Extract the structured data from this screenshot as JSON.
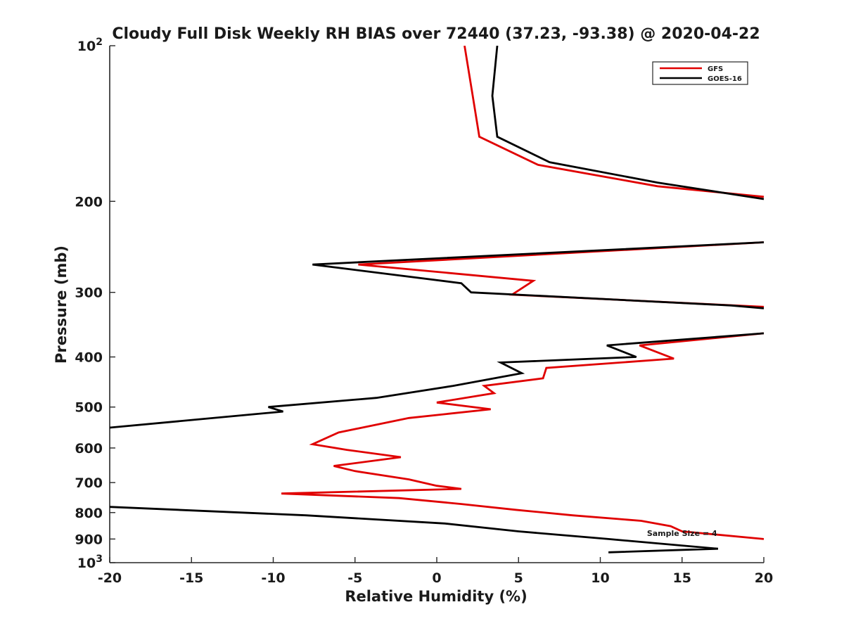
{
  "chart_data": {
    "type": "line",
    "title": "Cloudy Full Disk Weekly RH BIAS over 72440 (37.23, -93.38) @ 2020-04-22",
    "xlabel": "Relative Humidity (%)",
    "ylabel": "Pressure (mb)",
    "xlim": [
      -20,
      20
    ],
    "ylim": [
      100,
      1000
    ],
    "yscale": "log",
    "y_reversed": true,
    "grid": false,
    "legend_position": "top-right",
    "x_ticks": [
      -20,
      -15,
      -10,
      -5,
      0,
      5,
      10,
      15,
      20
    ],
    "x_tick_labels": [
      "-20",
      "-15",
      "-10",
      "-5",
      "0",
      "5",
      "10",
      "15",
      "20"
    ],
    "y_ticks": [
      100,
      200,
      300,
      400,
      500,
      600,
      700,
      800,
      900,
      1000
    ],
    "y_tick_labels": [
      {
        "base": "10",
        "exp": "2"
      },
      {
        "base": "200",
        "exp": ""
      },
      {
        "base": "300",
        "exp": ""
      },
      {
        "base": "400",
        "exp": ""
      },
      {
        "base": "500",
        "exp": ""
      },
      {
        "base": "600",
        "exp": ""
      },
      {
        "base": "700",
        "exp": ""
      },
      {
        "base": "800",
        "exp": ""
      },
      {
        "base": "900",
        "exp": ""
      },
      {
        "base": "10",
        "exp": "3"
      }
    ],
    "annotation": {
      "text": "Sample Size = 4",
      "x": 15,
      "p": 910
    },
    "series": [
      {
        "name": "GFS",
        "color": "#e00000",
        "points": [
          [
            1.7,
            100
          ],
          [
            2.2,
            125
          ],
          [
            2.6,
            150
          ],
          [
            6.2,
            170
          ],
          [
            13.5,
            187
          ],
          [
            20,
            196
          ],
          [
            null,
            null
          ],
          [
            20,
            240
          ],
          [
            -4.8,
            265
          ],
          [
            5.9,
            285
          ],
          [
            4.6,
            303
          ],
          [
            20,
            320
          ],
          [
            null,
            null
          ],
          [
            20,
            360
          ],
          [
            12.4,
            380
          ],
          [
            14.5,
            403
          ],
          [
            6.7,
            420
          ],
          [
            6.5,
            440
          ],
          [
            2.9,
            455
          ],
          [
            3.5,
            470
          ],
          [
            0,
            490
          ],
          [
            3.3,
            505
          ],
          [
            -1.7,
            525
          ],
          [
            -6.0,
            560
          ],
          [
            -7.6,
            590
          ],
          [
            -5.5,
            605
          ],
          [
            -2.2,
            625
          ],
          [
            -6.3,
            650
          ],
          [
            -5.0,
            665
          ],
          [
            -1.7,
            690
          ],
          [
            0,
            710
          ],
          [
            1.5,
            720
          ],
          [
            -9.5,
            735
          ],
          [
            -2.3,
            750
          ],
          [
            1.5,
            770
          ],
          [
            4.8,
            790
          ],
          [
            8.3,
            810
          ],
          [
            12.5,
            830
          ],
          [
            14.3,
            850
          ],
          [
            15.0,
            870
          ],
          [
            20,
            900
          ]
        ]
      },
      {
        "name": "GOES-16",
        "color": "#000000",
        "points": [
          [
            3.7,
            100
          ],
          [
            3.4,
            125
          ],
          [
            3.7,
            150
          ],
          [
            6.9,
            168
          ],
          [
            13.5,
            184
          ],
          [
            20,
            198
          ],
          [
            null,
            null
          ],
          [
            20,
            240
          ],
          [
            -7.6,
            265
          ],
          [
            1.5,
            288
          ],
          [
            2.1,
            300
          ],
          [
            18,
            318
          ],
          [
            20,
            322
          ],
          [
            null,
            null
          ],
          [
            20,
            360
          ],
          [
            10.4,
            380
          ],
          [
            12.2,
            400
          ],
          [
            3.9,
            410
          ],
          [
            5.2,
            430
          ],
          [
            1.0,
            455
          ],
          [
            -3.7,
            480
          ],
          [
            -10.3,
            500
          ],
          [
            -9.4,
            510
          ],
          [
            -20,
            548
          ],
          [
            null,
            null
          ],
          [
            -20,
            780
          ],
          [
            -8,
            810
          ],
          [
            0.5,
            840
          ],
          [
            5.0,
            870
          ],
          [
            10.5,
            900
          ],
          [
            17.2,
            940
          ],
          [
            10.5,
            955
          ]
        ]
      }
    ]
  }
}
